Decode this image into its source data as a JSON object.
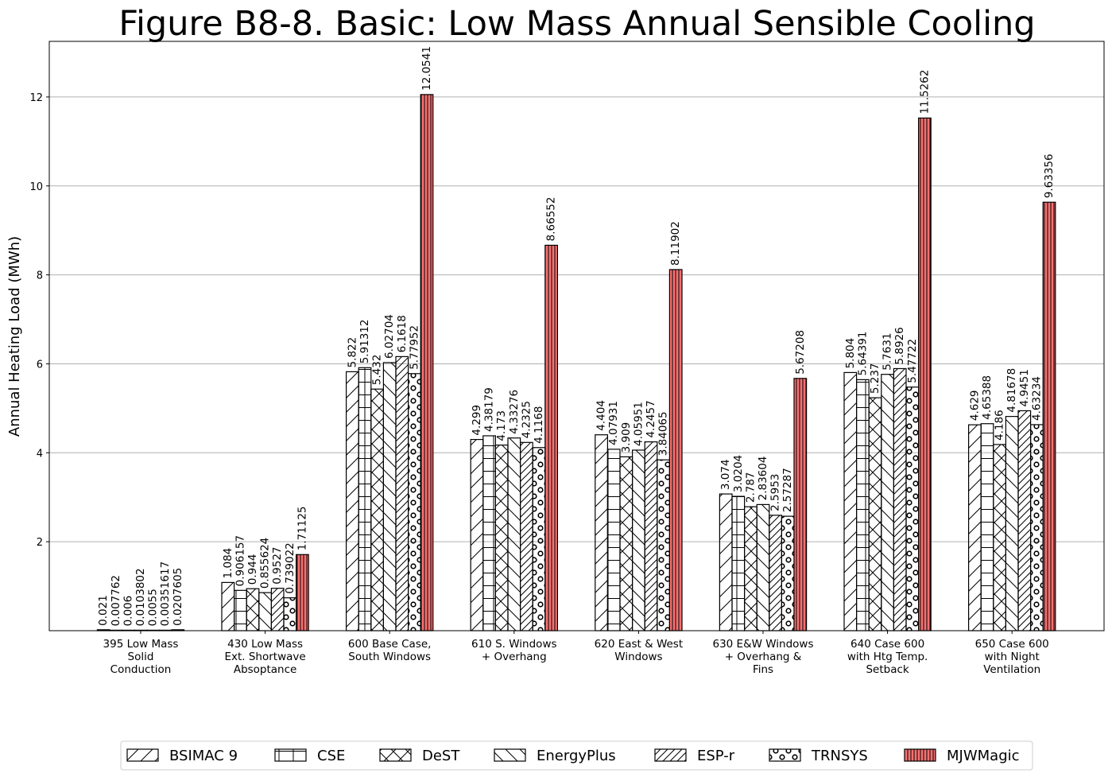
{
  "chart_data": {
    "type": "bar",
    "title": "Figure B8-8.  Basic: Low Mass Annual Sensible Cooling",
    "xlabel": "",
    "ylabel": "Annual Heating Load (MWh)",
    "ylim": [
      0,
      13.25
    ],
    "yticks": [
      2,
      4,
      6,
      8,
      10,
      12
    ],
    "grid": "horizontal",
    "legend_position": "bottom",
    "categories": [
      "395 Low Mass\nSolid\nConduction",
      "430 Low Mass\nExt. Shortwave\nAbsoptance",
      "600 Base Case,\nSouth Windows",
      "610 S. Windows\n+ Overhang",
      "620 East & West\nWindows",
      "630 E&W Windows\n+ Overhang &\nFins",
      "640 Case 600\nwith Htg Temp.\nSetback",
      "650 Case 600\nwith Night\nVentilation"
    ],
    "series": [
      {
        "name": "BSIMAC 9",
        "pattern": "diag-fwd",
        "color": "#ffffff",
        "values": [
          0.021,
          1.084,
          5.822,
          4.299,
          4.404,
          3.074,
          5.804,
          4.629
        ],
        "labels": [
          "0.021",
          "1.084",
          "5.822",
          "4.299",
          "4.404",
          "3.074",
          "5.804",
          "4.629"
        ]
      },
      {
        "name": "CSE",
        "pattern": "grid",
        "color": "#ffffff",
        "values": [
          0.007762,
          0.906157,
          5.91312,
          4.38179,
          4.07931,
          3.0204,
          5.64391,
          4.65388
        ],
        "labels": [
          "0.007762",
          "0.906157",
          "5.91312",
          "4.38179",
          "4.07931",
          "3.0204",
          "5.64391",
          "4.65388"
        ]
      },
      {
        "name": "DeST",
        "pattern": "cross",
        "color": "#ffffff",
        "values": [
          0.006,
          0.944,
          5.432,
          4.173,
          3.909,
          2.787,
          5.237,
          4.186
        ],
        "labels": [
          "0.006",
          "0.944",
          "5.432",
          "4.173",
          "3.909",
          "2.787",
          "5.237",
          "4.186"
        ]
      },
      {
        "name": "EnergyPlus",
        "pattern": "diag-back",
        "color": "#ffffff",
        "values": [
          0.0103802,
          0.855624,
          6.02704,
          4.33276,
          4.05951,
          2.83604,
          5.7631,
          4.81678
        ],
        "labels": [
          "0.0103802",
          "0.855624",
          "6.02704",
          "4.33276",
          "4.05951",
          "2.83604",
          "5.7631",
          "4.81678"
        ]
      },
      {
        "name": "ESP-r",
        "pattern": "diag-fwd-dense",
        "color": "#ffffff",
        "values": [
          0.0055,
          0.9527,
          6.1618,
          4.2325,
          4.2457,
          2.5953,
          5.8926,
          4.9451
        ],
        "labels": [
          "0.0055",
          "0.9527",
          "6.1618",
          "4.2325",
          "4.2457",
          "2.5953",
          "5.8926",
          "4.9451"
        ]
      },
      {
        "name": "TRNSYS",
        "pattern": "circles",
        "color": "#ffffff",
        "values": [
          0.00351617,
          0.739022,
          5.77952,
          4.1168,
          3.84065,
          2.57287,
          5.47722,
          4.63234
        ],
        "labels": [
          "0.00351617",
          "0.739022",
          "5.77952",
          "4.1168",
          "3.84065",
          "2.57287",
          "5.47722",
          "4.63234"
        ]
      },
      {
        "name": "MJWMagic",
        "pattern": "vlines",
        "color": "#f87171",
        "values": [
          0.0207605,
          1.71125,
          12.0541,
          8.66552,
          8.11902,
          5.67208,
          11.5262,
          9.63356
        ],
        "labels": [
          "0.0207605",
          "1.71125",
          "12.0541",
          "8.66552",
          "8.11902",
          "5.67208",
          "11.5262",
          "9.63356"
        ]
      }
    ]
  }
}
